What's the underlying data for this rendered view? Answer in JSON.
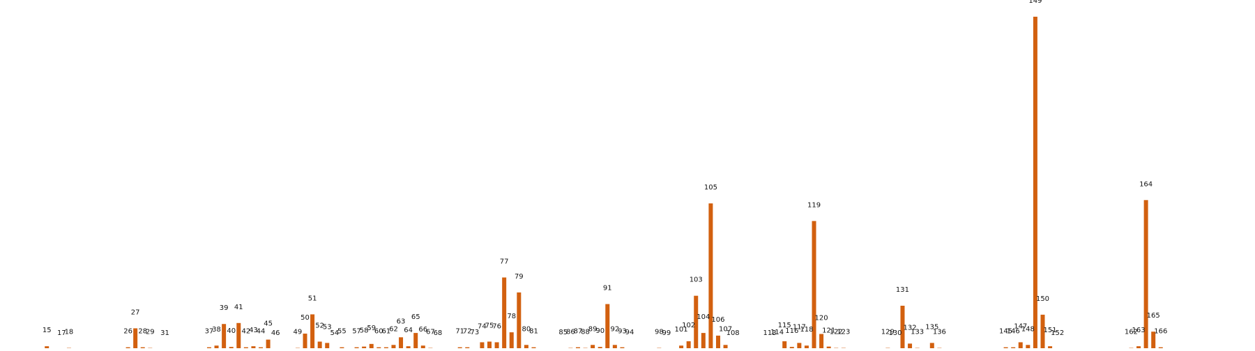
{
  "chart_data": {
    "type": "bar",
    "title": "",
    "xlabel": "",
    "ylabel": "",
    "grid": false,
    "legend": "none",
    "bar_color": "#d2600f",
    "x_domain": [
      0,
      178
    ],
    "y_domain": [
      0,
      100
    ],
    "bars": [
      {
        "label": "15",
        "x": 15,
        "value": 0.8
      },
      {
        "label": "17",
        "x": 17,
        "value": 0
      },
      {
        "label": "18",
        "x": 18,
        "value": 0.3
      },
      {
        "label": "26",
        "x": 26,
        "value": 0.5
      },
      {
        "label": "27",
        "x": 27,
        "value": 6.2
      },
      {
        "label": "28",
        "x": 28,
        "value": 0.5
      },
      {
        "label": "29",
        "x": 29,
        "value": 0.3
      },
      {
        "label": "31",
        "x": 31,
        "value": 0
      },
      {
        "label": "37",
        "x": 37,
        "value": 0.5
      },
      {
        "label": "38",
        "x": 38,
        "value": 1.0
      },
      {
        "label": "39",
        "x": 39,
        "value": 7.5
      },
      {
        "label": "40",
        "x": 40,
        "value": 0.6
      },
      {
        "label": "41",
        "x": 41,
        "value": 7.8
      },
      {
        "label": "42",
        "x": 42,
        "value": 0.5
      },
      {
        "label": "43",
        "x": 43,
        "value": 0.8
      },
      {
        "label": "44",
        "x": 44,
        "value": 0.5
      },
      {
        "label": "45",
        "x": 45,
        "value": 2.8
      },
      {
        "label": "46",
        "x": 46,
        "value": 0
      },
      {
        "label": "49",
        "x": 49,
        "value": 0.3
      },
      {
        "label": "50",
        "x": 50,
        "value": 4.6
      },
      {
        "label": "51",
        "x": 51,
        "value": 10.4
      },
      {
        "label": "52",
        "x": 52,
        "value": 2.2
      },
      {
        "label": "53",
        "x": 53,
        "value": 1.8
      },
      {
        "label": "54",
        "x": 54,
        "value": 0
      },
      {
        "label": "55",
        "x": 55,
        "value": 0.5
      },
      {
        "label": "57",
        "x": 57,
        "value": 0.5
      },
      {
        "label": "58",
        "x": 58,
        "value": 0.7
      },
      {
        "label": "59",
        "x": 59,
        "value": 1.5
      },
      {
        "label": "60",
        "x": 60,
        "value": 0.5
      },
      {
        "label": "61",
        "x": 61,
        "value": 0.5
      },
      {
        "label": "62",
        "x": 62,
        "value": 1.2
      },
      {
        "label": "63",
        "x": 63,
        "value": 3.5
      },
      {
        "label": "64",
        "x": 64,
        "value": 0.8
      },
      {
        "label": "65",
        "x": 65,
        "value": 4.8
      },
      {
        "label": "66",
        "x": 66,
        "value": 1.0
      },
      {
        "label": "67",
        "x": 67,
        "value": 0.3
      },
      {
        "label": "68",
        "x": 68,
        "value": 0
      },
      {
        "label": "71",
        "x": 71,
        "value": 0.5
      },
      {
        "label": "72",
        "x": 72,
        "value": 0.5
      },
      {
        "label": "73",
        "x": 73,
        "value": 0.2
      },
      {
        "label": "74",
        "x": 74,
        "value": 2.0
      },
      {
        "label": "75",
        "x": 75,
        "value": 2.2
      },
      {
        "label": "76",
        "x": 76,
        "value": 2.0
      },
      {
        "label": "77",
        "x": 77,
        "value": 21.5
      },
      {
        "label": "78",
        "x": 78,
        "value": 5.0
      },
      {
        "label": "79",
        "x": 79,
        "value": 17.0
      },
      {
        "label": "80",
        "x": 80,
        "value": 1.2
      },
      {
        "label": "81",
        "x": 81,
        "value": 0.5
      },
      {
        "label": "85",
        "x": 85,
        "value": 0.2
      },
      {
        "label": "86",
        "x": 86,
        "value": 0.3
      },
      {
        "label": "87",
        "x": 87,
        "value": 0.5
      },
      {
        "label": "88",
        "x": 88,
        "value": 0.3
      },
      {
        "label": "89",
        "x": 89,
        "value": 1.2
      },
      {
        "label": "90",
        "x": 90,
        "value": 0.6
      },
      {
        "label": "91",
        "x": 91,
        "value": 13.5
      },
      {
        "label": "92",
        "x": 92,
        "value": 1.2
      },
      {
        "label": "93",
        "x": 93,
        "value": 0.5
      },
      {
        "label": "94",
        "x": 94,
        "value": 0.2
      },
      {
        "label": "98",
        "x": 98,
        "value": 0.3
      },
      {
        "label": "99",
        "x": 99,
        "value": 0
      },
      {
        "label": "101",
        "x": 101,
        "value": 1.0
      },
      {
        "label": "102",
        "x": 102,
        "value": 2.3
      },
      {
        "label": "103",
        "x": 103,
        "value": 16.0
      },
      {
        "label": "104",
        "x": 104,
        "value": 4.8
      },
      {
        "label": "105",
        "x": 105,
        "value": 43.8
      },
      {
        "label": "106",
        "x": 106,
        "value": 4.0
      },
      {
        "label": "107",
        "x": 107,
        "value": 1.2
      },
      {
        "label": "108",
        "x": 108,
        "value": 0
      },
      {
        "label": "113",
        "x": 113,
        "value": 0
      },
      {
        "label": "114",
        "x": 114,
        "value": 0.2
      },
      {
        "label": "115",
        "x": 115,
        "value": 2.3
      },
      {
        "label": "116",
        "x": 116,
        "value": 0.6
      },
      {
        "label": "117",
        "x": 117,
        "value": 1.8
      },
      {
        "label": "118",
        "x": 118,
        "value": 1.0
      },
      {
        "label": "119",
        "x": 119,
        "value": 38.5
      },
      {
        "label": "120",
        "x": 120,
        "value": 4.5
      },
      {
        "label": "121",
        "x": 121,
        "value": 0.7
      },
      {
        "label": "122",
        "x": 122,
        "value": 0.3
      },
      {
        "label": "123",
        "x": 123,
        "value": 0.3
      },
      {
        "label": "129",
        "x": 129,
        "value": 0.3
      },
      {
        "label": "130",
        "x": 130,
        "value": 0
      },
      {
        "label": "131",
        "x": 131,
        "value": 13.0
      },
      {
        "label": "132",
        "x": 132,
        "value": 1.6
      },
      {
        "label": "133",
        "x": 133,
        "value": 0.3
      },
      {
        "label": "135",
        "x": 135,
        "value": 1.8
      },
      {
        "label": "136",
        "x": 136,
        "value": 0.3
      },
      {
        "label": "145",
        "x": 145,
        "value": 0.5
      },
      {
        "label": "146",
        "x": 146,
        "value": 0.5
      },
      {
        "label": "147",
        "x": 147,
        "value": 2.0
      },
      {
        "label": "148",
        "x": 148,
        "value": 1.2
      },
      {
        "label": "149",
        "x": 149,
        "value": 100
      },
      {
        "label": "150",
        "x": 150,
        "value": 10.3
      },
      {
        "label": "151",
        "x": 151,
        "value": 0.8
      },
      {
        "label": "152",
        "x": 152,
        "value": 0
      },
      {
        "label": "162",
        "x": 162,
        "value": 0.3
      },
      {
        "label": "163",
        "x": 163,
        "value": 0.8
      },
      {
        "label": "164",
        "x": 164,
        "value": 44.8
      },
      {
        "label": "165",
        "x": 165,
        "value": 5.2
      },
      {
        "label": "166",
        "x": 166,
        "value": 0.5
      }
    ]
  }
}
